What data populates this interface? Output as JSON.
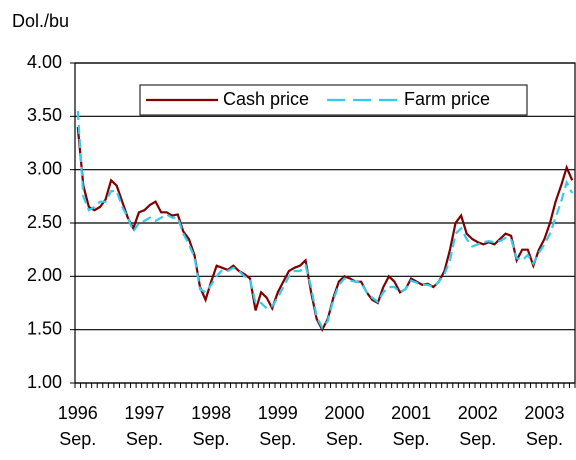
{
  "chart_data": {
    "type": "line",
    "y_label": "Dol./bu",
    "categories": [
      "1996\nSep.",
      null,
      null,
      null,
      null,
      null,
      null,
      null,
      null,
      null,
      null,
      null,
      "1997\nSep.",
      null,
      null,
      null,
      null,
      null,
      null,
      null,
      null,
      null,
      null,
      null,
      "1998\nSep.",
      null,
      null,
      null,
      null,
      null,
      null,
      null,
      null,
      null,
      null,
      null,
      "1999\nSep.",
      null,
      null,
      null,
      null,
      null,
      null,
      null,
      null,
      null,
      null,
      null,
      "2000\nSep.",
      null,
      null,
      null,
      null,
      null,
      null,
      null,
      null,
      null,
      null,
      null,
      "2001\nSep.",
      null,
      null,
      null,
      null,
      null,
      null,
      null,
      null,
      null,
      null,
      null,
      "2002\nSep.",
      null,
      null,
      null,
      null,
      null,
      null,
      null,
      null,
      null,
      null,
      null,
      "2003\nSep.",
      null,
      null,
      null,
      null,
      null
    ],
    "series": [
      {
        "name": "Cash price",
        "color": "#800000",
        "dashed": false,
        "values": [
          3.4,
          2.85,
          2.65,
          2.62,
          2.65,
          2.72,
          2.9,
          2.85,
          2.7,
          2.55,
          2.45,
          2.6,
          2.62,
          2.67,
          2.7,
          2.6,
          2.6,
          2.57,
          2.58,
          2.42,
          2.35,
          2.2,
          1.9,
          1.78,
          1.95,
          2.1,
          2.08,
          2.06,
          2.1,
          2.05,
          2.02,
          1.98,
          1.68,
          1.85,
          1.8,
          1.7,
          1.85,
          1.95,
          2.05,
          2.08,
          2.1,
          2.15,
          1.85,
          1.6,
          1.5,
          1.6,
          1.8,
          1.95,
          2.0,
          1.98,
          1.95,
          1.95,
          1.85,
          1.78,
          1.75,
          1.9,
          2.0,
          1.95,
          1.85,
          1.88,
          1.98,
          1.95,
          1.92,
          1.93,
          1.9,
          1.95,
          2.05,
          2.25,
          2.5,
          2.57,
          2.4,
          2.35,
          2.32,
          2.3,
          2.32,
          2.3,
          2.35,
          2.4,
          2.38,
          2.15,
          2.25,
          2.25,
          2.1,
          2.25,
          2.35,
          2.5,
          2.7,
          2.85,
          3.02,
          2.9
        ]
      },
      {
        "name": "Farm price",
        "color": "#33ccee",
        "dashed": true,
        "values": [
          3.55,
          2.75,
          2.62,
          2.65,
          2.7,
          2.7,
          2.8,
          2.8,
          2.65,
          2.55,
          2.42,
          2.5,
          2.52,
          2.55,
          2.52,
          2.55,
          2.58,
          2.55,
          2.55,
          2.4,
          2.3,
          2.18,
          1.88,
          1.85,
          1.92,
          2.0,
          2.06,
          2.05,
          2.08,
          2.05,
          2.0,
          1.97,
          1.75,
          1.75,
          1.7,
          1.72,
          1.8,
          1.9,
          2.0,
          2.05,
          2.05,
          2.1,
          1.9,
          1.62,
          1.52,
          1.58,
          1.78,
          1.92,
          1.98,
          1.96,
          1.95,
          1.94,
          1.85,
          1.8,
          1.76,
          1.85,
          1.9,
          1.9,
          1.85,
          1.88,
          1.96,
          1.94,
          1.92,
          1.92,
          1.9,
          1.95,
          2.02,
          2.15,
          2.4,
          2.45,
          2.35,
          2.28,
          2.3,
          2.32,
          2.33,
          2.32,
          2.33,
          2.36,
          2.35,
          2.17,
          2.15,
          2.2,
          2.12,
          2.22,
          2.3,
          2.4,
          2.55,
          2.7,
          2.88,
          2.78
        ]
      }
    ],
    "ylim": [
      1,
      4
    ],
    "yticks": [
      {
        "value": 1,
        "label": "1.00"
      },
      {
        "value": 1.5,
        "label": "1.50"
      },
      {
        "value": 2,
        "label": "2.00"
      },
      {
        "value": 2.5,
        "label": "2.50"
      },
      {
        "value": 3,
        "label": "3.00"
      },
      {
        "value": 3.5,
        "label": "3.50"
      },
      {
        "value": 4,
        "label": "4.00"
      }
    ],
    "grid": true,
    "legend": "top"
  }
}
